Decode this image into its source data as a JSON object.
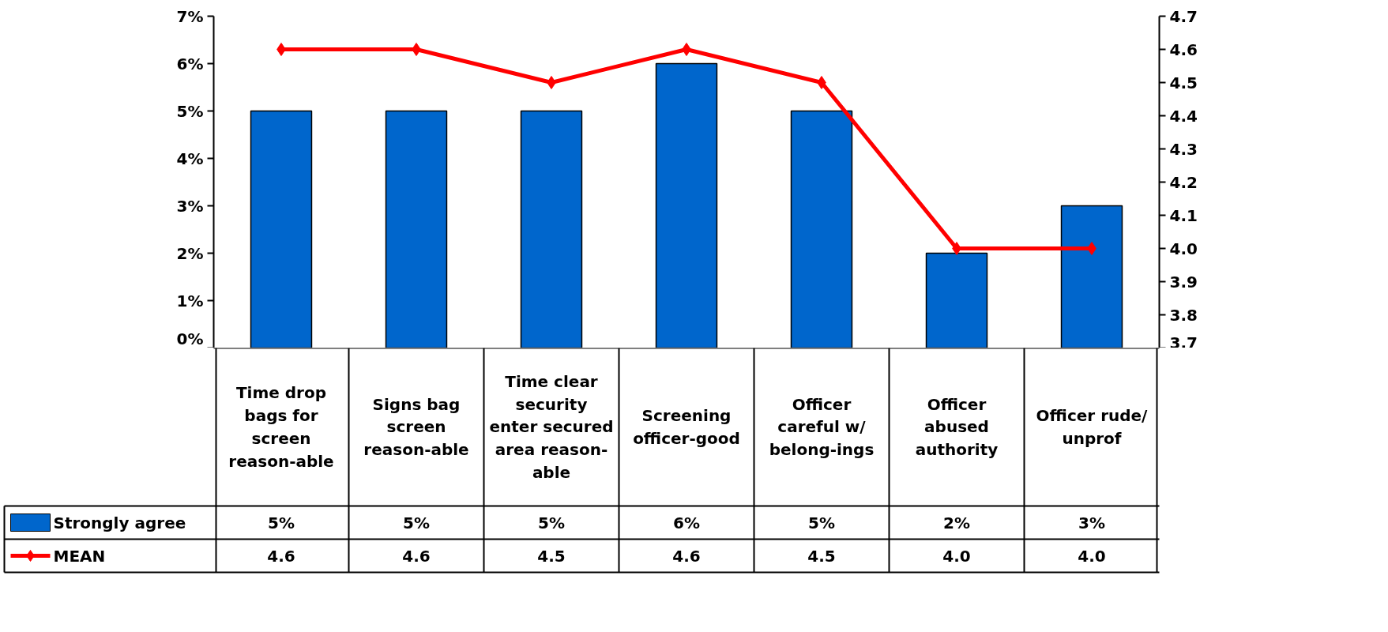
{
  "chart_data": {
    "type": "bar",
    "categories": [
      "Time drop bags for screen reason-able",
      "Signs bag screen reason-able",
      "Time clear security enter secured area reason-able",
      "Screening officer-good",
      "Officer careful w/ belong-ings",
      "Officer abused authority",
      "Officer rude/ unprof"
    ],
    "series": [
      {
        "name": "Strongly agree",
        "color": "#0066cc",
        "values": [
          5,
          5,
          5,
          6,
          5,
          2,
          3
        ],
        "value_labels": [
          "5%",
          "5%",
          "5%",
          "6%",
          "5%",
          "2%",
          "3%"
        ]
      },
      {
        "name": "MEAN",
        "type": "line",
        "axis": "y2",
        "color": "#ff0000",
        "marker": "diamond",
        "values": [
          4.6,
          4.6,
          4.5,
          4.6,
          4.5,
          4.0,
          4.0
        ],
        "value_labels": [
          "4.6",
          "4.6",
          "4.5",
          "4.6",
          "4.5",
          "4.0",
          "4.0"
        ]
      }
    ],
    "ylim": [
      0,
      7
    ],
    "yticks": [
      {
        "value": 0,
        "label": "0%"
      },
      {
        "value": 1,
        "label": "1%"
      },
      {
        "value": 2,
        "label": "2%"
      },
      {
        "value": 3,
        "label": "3%"
      },
      {
        "value": 4,
        "label": "4%"
      },
      {
        "value": 5,
        "label": "5%"
      },
      {
        "value": 6,
        "label": "6%"
      },
      {
        "value": 7,
        "label": "7%"
      }
    ],
    "y2lim": [
      3.7,
      4.7
    ],
    "y2ticks": [
      {
        "value": 3.7,
        "label": "3.7"
      },
      {
        "value": 3.8,
        "label": "3.8"
      },
      {
        "value": 3.9,
        "label": "3.9"
      },
      {
        "value": 4.0,
        "label": "4.0"
      },
      {
        "value": 4.1,
        "label": "4.1"
      },
      {
        "value": 4.2,
        "label": "4.2"
      },
      {
        "value": 4.3,
        "label": "4.3"
      },
      {
        "value": 4.4,
        "label": "4.4"
      },
      {
        "value": 4.5,
        "label": "4.5"
      },
      {
        "value": 4.6,
        "label": "4.6"
      },
      {
        "value": 4.7,
        "label": "4.7"
      }
    ],
    "grid": false,
    "legend": "bottom",
    "line_style": "solid"
  }
}
